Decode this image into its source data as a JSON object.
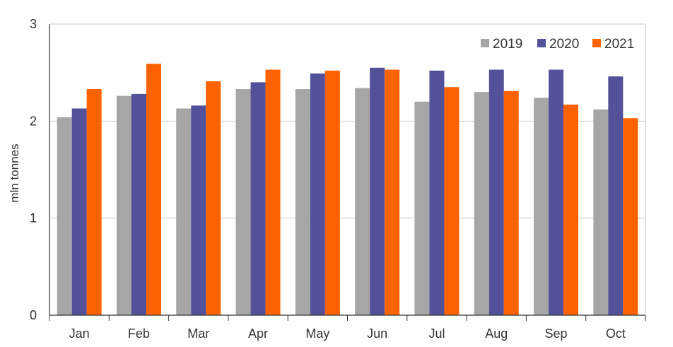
{
  "chart_data": {
    "type": "bar",
    "title": "",
    "xlabel": "",
    "ylabel": "mln tonnes",
    "ylim": [
      0,
      3
    ],
    "yticks": [
      0,
      1,
      2,
      3
    ],
    "grid": true,
    "legend_position": "top-right",
    "categories": [
      "Jan",
      "Feb",
      "Mar",
      "Apr",
      "May",
      "Jun",
      "Jul",
      "Aug",
      "Sep",
      "Oct"
    ],
    "series": [
      {
        "name": "2019",
        "color": "#a6a6a6",
        "values": [
          2.04,
          2.26,
          2.13,
          2.33,
          2.33,
          2.34,
          2.2,
          2.3,
          2.24,
          2.12
        ]
      },
      {
        "name": "2020",
        "color": "#525199",
        "values": [
          2.13,
          2.28,
          2.16,
          2.4,
          2.49,
          2.55,
          2.52,
          2.53,
          2.53,
          2.46
        ]
      },
      {
        "name": "2021",
        "color": "#ff6200",
        "values": [
          2.33,
          2.59,
          2.41,
          2.53,
          2.52,
          2.53,
          2.35,
          2.31,
          2.17,
          2.03
        ]
      }
    ]
  }
}
